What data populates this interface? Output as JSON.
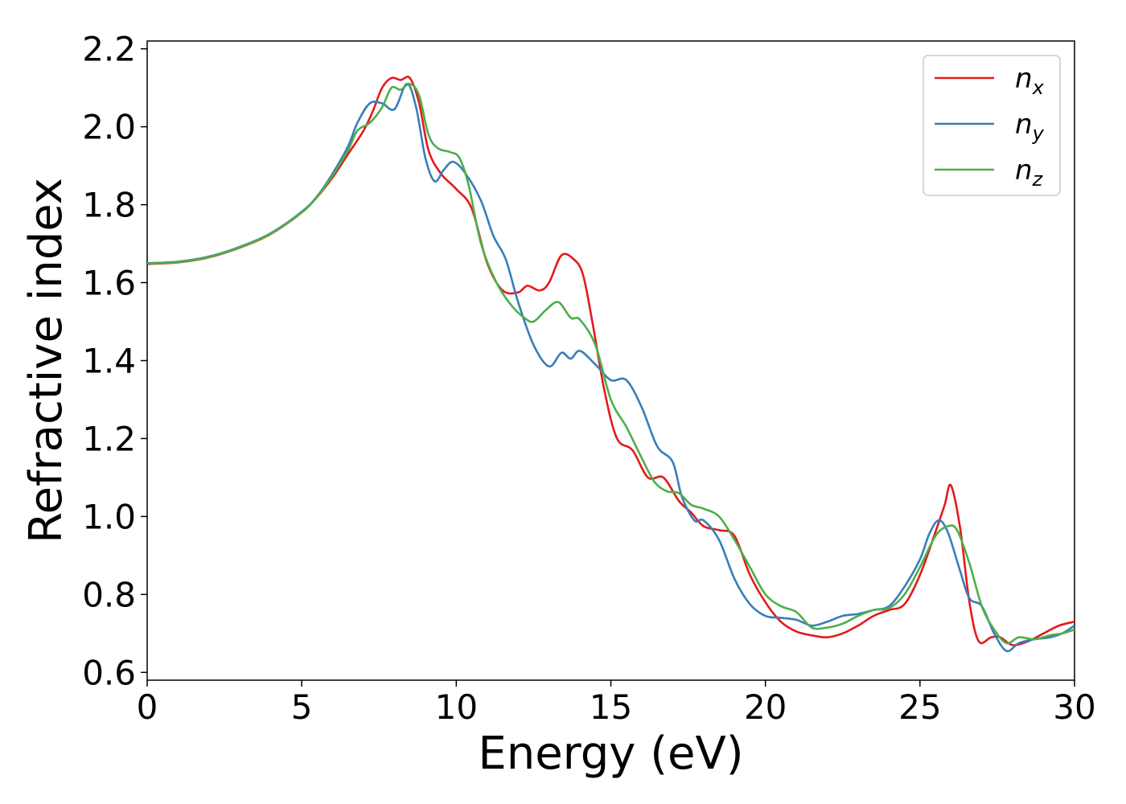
{
  "chart_data": {
    "type": "line",
    "title": "",
    "xlabel": "Energy (eV)",
    "ylabel": "Refractive index",
    "xlim": [
      0,
      30
    ],
    "ylim": [
      0.58,
      2.22
    ],
    "xticks": [
      0,
      5,
      10,
      15,
      20,
      25,
      30
    ],
    "xtick_labels": [
      "0",
      "5",
      "10",
      "15",
      "20",
      "25",
      "30"
    ],
    "yticks": [
      0.6,
      0.8,
      1.0,
      1.2,
      1.4,
      1.6,
      1.8,
      2.0,
      2.2
    ],
    "ytick_labels": [
      "0.6",
      "0.8",
      "1.0",
      "1.2",
      "1.4",
      "1.6",
      "1.8",
      "2.0",
      "2.2"
    ],
    "grid": false,
    "legend_position": "top-right",
    "series": [
      {
        "name": "n",
        "subscript": "x",
        "color": "#e41a1c",
        "points": [
          [
            0,
            1.648
          ],
          [
            1,
            1.652
          ],
          [
            2,
            1.665
          ],
          [
            3,
            1.69
          ],
          [
            4,
            1.725
          ],
          [
            5,
            1.78
          ],
          [
            5.5,
            1.82
          ],
          [
            6,
            1.87
          ],
          [
            6.5,
            1.93
          ],
          [
            7,
            1.99
          ],
          [
            7.3,
            2.04
          ],
          [
            7.6,
            2.1
          ],
          [
            7.9,
            2.125
          ],
          [
            8.2,
            2.12
          ],
          [
            8.5,
            2.125
          ],
          [
            8.8,
            2.06
          ],
          [
            9.1,
            1.94
          ],
          [
            9.5,
            1.88
          ],
          [
            10,
            1.84
          ],
          [
            10.5,
            1.79
          ],
          [
            11,
            1.65
          ],
          [
            11.5,
            1.58
          ],
          [
            12,
            1.575
          ],
          [
            12.3,
            1.592
          ],
          [
            12.7,
            1.58
          ],
          [
            13,
            1.6
          ],
          [
            13.4,
            1.67
          ],
          [
            13.8,
            1.66
          ],
          [
            14.1,
            1.62
          ],
          [
            14.4,
            1.5
          ],
          [
            14.8,
            1.32
          ],
          [
            15.2,
            1.2
          ],
          [
            15.7,
            1.17
          ],
          [
            16.2,
            1.1
          ],
          [
            16.7,
            1.1
          ],
          [
            17.2,
            1.04
          ],
          [
            17.6,
            1.01
          ],
          [
            18,
            0.975
          ],
          [
            18.5,
            0.965
          ],
          [
            19,
            0.95
          ],
          [
            19.5,
            0.85
          ],
          [
            20,
            0.78
          ],
          [
            20.5,
            0.73
          ],
          [
            21,
            0.705
          ],
          [
            21.5,
            0.695
          ],
          [
            22,
            0.69
          ],
          [
            22.5,
            0.7
          ],
          [
            23,
            0.72
          ],
          [
            23.5,
            0.745
          ],
          [
            24,
            0.76
          ],
          [
            24.5,
            0.775
          ],
          [
            25,
            0.85
          ],
          [
            25.5,
            0.96
          ],
          [
            25.8,
            1.03
          ],
          [
            26,
            1.08
          ],
          [
            26.3,
            0.97
          ],
          [
            26.6,
            0.78
          ],
          [
            26.9,
            0.68
          ],
          [
            27.3,
            0.69
          ],
          [
            27.6,
            0.69
          ],
          [
            28,
            0.67
          ],
          [
            28.5,
            0.68
          ],
          [
            29,
            0.7
          ],
          [
            29.5,
            0.72
          ],
          [
            30,
            0.73
          ]
        ]
      },
      {
        "name": "n",
        "subscript": "y",
        "color": "#377eb8",
        "points": [
          [
            0,
            1.65
          ],
          [
            1,
            1.654
          ],
          [
            2,
            1.667
          ],
          [
            3,
            1.692
          ],
          [
            4,
            1.727
          ],
          [
            5,
            1.782
          ],
          [
            5.5,
            1.822
          ],
          [
            6,
            1.88
          ],
          [
            6.5,
            1.95
          ],
          [
            6.8,
            2.01
          ],
          [
            7.2,
            2.06
          ],
          [
            7.6,
            2.06
          ],
          [
            8,
            2.045
          ],
          [
            8.4,
            2.11
          ],
          [
            8.7,
            2.05
          ],
          [
            9,
            1.92
          ],
          [
            9.3,
            1.86
          ],
          [
            9.6,
            1.89
          ],
          [
            9.9,
            1.91
          ],
          [
            10.3,
            1.88
          ],
          [
            10.8,
            1.81
          ],
          [
            11.2,
            1.72
          ],
          [
            11.6,
            1.66
          ],
          [
            12,
            1.55
          ],
          [
            12.5,
            1.44
          ],
          [
            13,
            1.385
          ],
          [
            13.4,
            1.42
          ],
          [
            13.7,
            1.405
          ],
          [
            14,
            1.425
          ],
          [
            14.5,
            1.39
          ],
          [
            15,
            1.35
          ],
          [
            15.5,
            1.35
          ],
          [
            16,
            1.28
          ],
          [
            16.5,
            1.18
          ],
          [
            17,
            1.14
          ],
          [
            17.3,
            1.05
          ],
          [
            17.7,
            0.99
          ],
          [
            18,
            0.99
          ],
          [
            18.5,
            0.94
          ],
          [
            19,
            0.84
          ],
          [
            19.5,
            0.775
          ],
          [
            20,
            0.745
          ],
          [
            20.5,
            0.74
          ],
          [
            21,
            0.735
          ],
          [
            21.5,
            0.72
          ],
          [
            22,
            0.73
          ],
          [
            22.5,
            0.745
          ],
          [
            23,
            0.75
          ],
          [
            23.5,
            0.76
          ],
          [
            24,
            0.77
          ],
          [
            24.5,
            0.82
          ],
          [
            25,
            0.89
          ],
          [
            25.3,
            0.955
          ],
          [
            25.6,
            0.99
          ],
          [
            25.9,
            0.96
          ],
          [
            26.3,
            0.86
          ],
          [
            26.6,
            0.79
          ],
          [
            27,
            0.77
          ],
          [
            27.4,
            0.7
          ],
          [
            27.8,
            0.655
          ],
          [
            28.2,
            0.675
          ],
          [
            28.7,
            0.685
          ],
          [
            29.2,
            0.69
          ],
          [
            29.6,
            0.7
          ],
          [
            30,
            0.72
          ]
        ]
      },
      {
        "name": "n",
        "subscript": "z",
        "color": "#4daf4a",
        "points": [
          [
            0,
            1.649
          ],
          [
            1,
            1.653
          ],
          [
            2,
            1.666
          ],
          [
            3,
            1.691
          ],
          [
            4,
            1.726
          ],
          [
            5,
            1.781
          ],
          [
            5.5,
            1.821
          ],
          [
            6,
            1.875
          ],
          [
            6.5,
            1.94
          ],
          [
            6.8,
            1.99
          ],
          [
            7.2,
            2.01
          ],
          [
            7.6,
            2.05
          ],
          [
            7.9,
            2.1
          ],
          [
            8.2,
            2.095
          ],
          [
            8.5,
            2.11
          ],
          [
            8.8,
            2.08
          ],
          [
            9.1,
            1.98
          ],
          [
            9.4,
            1.945
          ],
          [
            9.8,
            1.935
          ],
          [
            10.1,
            1.92
          ],
          [
            10.4,
            1.85
          ],
          [
            10.8,
            1.7
          ],
          [
            11.3,
            1.6
          ],
          [
            11.8,
            1.54
          ],
          [
            12.2,
            1.51
          ],
          [
            12.5,
            1.5
          ],
          [
            12.9,
            1.53
          ],
          [
            13.3,
            1.55
          ],
          [
            13.7,
            1.51
          ],
          [
            14,
            1.505
          ],
          [
            14.5,
            1.44
          ],
          [
            15,
            1.3
          ],
          [
            15.5,
            1.23
          ],
          [
            16,
            1.15
          ],
          [
            16.4,
            1.09
          ],
          [
            16.8,
            1.065
          ],
          [
            17.2,
            1.06
          ],
          [
            17.6,
            1.03
          ],
          [
            18,
            1.02
          ],
          [
            18.5,
            1.0
          ],
          [
            19,
            0.94
          ],
          [
            19.5,
            0.87
          ],
          [
            20,
            0.8
          ],
          [
            20.5,
            0.77
          ],
          [
            21,
            0.755
          ],
          [
            21.5,
            0.715
          ],
          [
            22,
            0.715
          ],
          [
            22.5,
            0.725
          ],
          [
            23,
            0.745
          ],
          [
            23.5,
            0.76
          ],
          [
            24,
            0.765
          ],
          [
            24.5,
            0.8
          ],
          [
            25,
            0.87
          ],
          [
            25.5,
            0.95
          ],
          [
            25.9,
            0.975
          ],
          [
            26.2,
            0.965
          ],
          [
            26.6,
            0.88
          ],
          [
            27,
            0.77
          ],
          [
            27.4,
            0.71
          ],
          [
            27.8,
            0.675
          ],
          [
            28.2,
            0.69
          ],
          [
            28.7,
            0.685
          ],
          [
            29.2,
            0.695
          ],
          [
            29.6,
            0.7
          ],
          [
            30,
            0.71
          ]
        ]
      }
    ]
  }
}
